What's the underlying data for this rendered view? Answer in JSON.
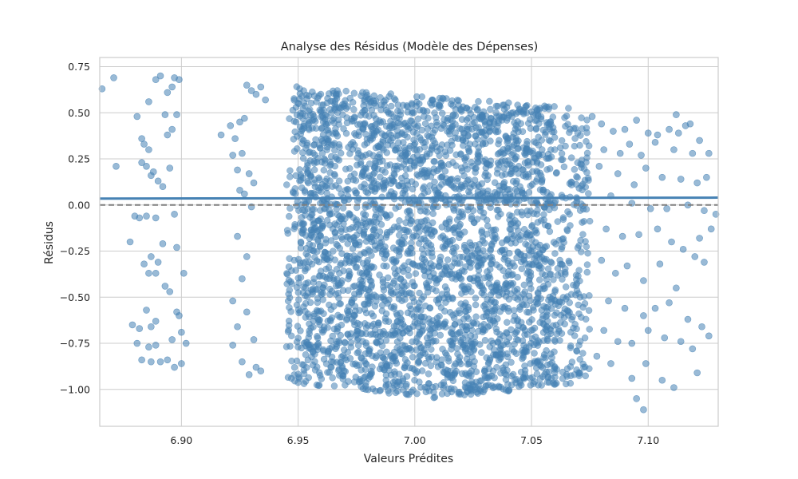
{
  "chart_data": {
    "type": "scatter",
    "title": "Analyse des Résidus (Modèle des Dépenses)",
    "xlabel": "Valeurs Prédites",
    "ylabel": "Résidus",
    "xlim": [
      6.865,
      7.13
    ],
    "ylim": [
      -1.2,
      0.8
    ],
    "x_ticks": [
      6.9,
      6.95,
      7.0,
      7.05,
      7.1
    ],
    "x_tick_labels": [
      "6.90",
      "6.95",
      "7.00",
      "7.05",
      "7.10"
    ],
    "y_ticks": [
      -1.0,
      -0.75,
      -0.5,
      -0.25,
      0.0,
      0.25,
      0.5,
      0.75
    ],
    "y_tick_labels": [
      "−1.00",
      "−0.75",
      "−0.50",
      "−0.25",
      "0.00",
      "0.25",
      "0.50",
      "0.75"
    ],
    "grid": true,
    "legend": "none",
    "marker_color": "#4682B4",
    "marker_alpha": 0.55,
    "series": [
      {
        "kind": "points-sample",
        "points": [
          [
            6.866,
            0.63
          ],
          [
            6.871,
            0.69
          ],
          [
            6.872,
            0.21
          ],
          [
            6.881,
            0.48
          ],
          [
            6.883,
            0.36
          ],
          [
            6.884,
            0.33
          ],
          [
            6.886,
            0.56
          ],
          [
            6.887,
            0.16
          ],
          [
            6.889,
            0.68
          ],
          [
            6.891,
            0.7
          ],
          [
            6.893,
            0.49
          ],
          [
            6.894,
            0.61
          ],
          [
            6.896,
            0.64
          ],
          [
            6.897,
            0.69
          ],
          [
            6.898,
            0.49
          ],
          [
            6.885,
            0.21
          ],
          [
            6.888,
            0.18
          ],
          [
            6.89,
            0.13
          ],
          [
            6.892,
            0.1
          ],
          [
            6.895,
            0.2
          ],
          [
            6.899,
            0.68
          ],
          [
            6.896,
            0.41
          ],
          [
            6.894,
            0.38
          ],
          [
            6.886,
            0.3
          ],
          [
            6.883,
            0.23
          ],
          [
            6.88,
            -0.06
          ],
          [
            6.882,
            -0.07
          ],
          [
            6.885,
            -0.06
          ],
          [
            6.889,
            -0.07
          ],
          [
            6.897,
            -0.05
          ],
          [
            6.878,
            -0.2
          ],
          [
            6.887,
            -0.28
          ],
          [
            6.89,
            -0.31
          ],
          [
            6.892,
            -0.21
          ],
          [
            6.884,
            -0.32
          ],
          [
            6.886,
            -0.37
          ],
          [
            6.889,
            -0.37
          ],
          [
            6.893,
            -0.44
          ],
          [
            6.895,
            -0.47
          ],
          [
            6.898,
            -0.23
          ],
          [
            6.901,
            -0.37
          ],
          [
            6.898,
            -0.58
          ],
          [
            6.899,
            -0.6
          ],
          [
            6.885,
            -0.57
          ],
          [
            6.889,
            -0.63
          ],
          [
            6.879,
            -0.65
          ],
          [
            6.882,
            -0.67
          ],
          [
            6.887,
            -0.66
          ],
          [
            6.881,
            -0.75
          ],
          [
            6.886,
            -0.77
          ],
          [
            6.889,
            -0.76
          ],
          [
            6.896,
            -0.73
          ],
          [
            6.9,
            -0.69
          ],
          [
            6.902,
            -0.75
          ],
          [
            6.883,
            -0.84
          ],
          [
            6.887,
            -0.85
          ],
          [
            6.891,
            -0.85
          ],
          [
            6.894,
            -0.84
          ],
          [
            6.897,
            -0.88
          ],
          [
            6.9,
            -0.86
          ],
          [
            6.917,
            0.38
          ],
          [
            6.921,
            0.43
          ],
          [
            6.925,
            0.45
          ],
          [
            6.927,
            0.47
          ],
          [
            6.923,
            0.36
          ],
          [
            6.926,
            0.28
          ],
          [
            6.922,
            0.27
          ],
          [
            6.928,
            0.65
          ],
          [
            6.93,
            0.62
          ],
          [
            6.932,
            0.6
          ],
          [
            6.934,
            0.64
          ],
          [
            6.936,
            0.57
          ],
          [
            6.924,
            0.19
          ],
          [
            6.929,
            0.17
          ],
          [
            6.931,
            0.12
          ],
          [
            6.927,
            0.06
          ],
          [
            6.925,
            0.08
          ],
          [
            6.93,
            -0.01
          ],
          [
            6.924,
            -0.17
          ],
          [
            6.928,
            -0.28
          ],
          [
            6.926,
            -0.4
          ],
          [
            6.922,
            -0.52
          ],
          [
            6.924,
            -0.66
          ],
          [
            6.922,
            -0.76
          ],
          [
            6.926,
            -0.85
          ],
          [
            6.929,
            -0.92
          ],
          [
            6.932,
            -0.88
          ],
          [
            6.934,
            -0.9
          ],
          [
            6.931,
            -0.73
          ],
          [
            6.928,
            -0.58
          ],
          [
            7.076,
            0.48
          ],
          [
            7.08,
            0.44
          ],
          [
            7.085,
            0.4
          ],
          [
            7.09,
            0.41
          ],
          [
            7.095,
            0.46
          ],
          [
            7.1,
            0.39
          ],
          [
            7.104,
            0.38
          ],
          [
            7.109,
            0.41
          ],
          [
            7.113,
            0.39
          ],
          [
            7.118,
            0.44
          ],
          [
            7.122,
            0.35
          ],
          [
            7.126,
            0.28
          ],
          [
            7.112,
            0.49
          ],
          [
            7.116,
            0.43
          ],
          [
            7.081,
            0.3
          ],
          [
            7.088,
            0.28
          ],
          [
            7.092,
            0.33
          ],
          [
            7.097,
            0.27
          ],
          [
            7.103,
            0.34
          ],
          [
            7.111,
            0.3
          ],
          [
            7.119,
            0.28
          ],
          [
            7.125,
            0.15
          ],
          [
            7.079,
            0.21
          ],
          [
            7.087,
            0.17
          ],
          [
            7.094,
            0.11
          ],
          [
            7.099,
            0.2
          ],
          [
            7.106,
            0.15
          ],
          [
            7.114,
            0.14
          ],
          [
            7.121,
            0.12
          ],
          [
            7.084,
            0.05
          ],
          [
            7.093,
            0.01
          ],
          [
            7.101,
            -0.02
          ],
          [
            7.108,
            -0.02
          ],
          [
            7.117,
            0.0
          ],
          [
            7.124,
            -0.03
          ],
          [
            7.129,
            -0.05
          ],
          [
            7.082,
            -0.13
          ],
          [
            7.089,
            -0.17
          ],
          [
            7.096,
            -0.16
          ],
          [
            7.104,
            -0.13
          ],
          [
            7.11,
            -0.2
          ],
          [
            7.115,
            -0.24
          ],
          [
            7.122,
            -0.18
          ],
          [
            7.127,
            -0.13
          ],
          [
            7.08,
            -0.3
          ],
          [
            7.086,
            -0.37
          ],
          [
            7.091,
            -0.33
          ],
          [
            7.098,
            -0.41
          ],
          [
            7.105,
            -0.32
          ],
          [
            7.112,
            -0.45
          ],
          [
            7.12,
            -0.28
          ],
          [
            7.124,
            -0.31
          ],
          [
            7.083,
            -0.52
          ],
          [
            7.09,
            -0.56
          ],
          [
            7.098,
            -0.6
          ],
          [
            7.103,
            -0.56
          ],
          [
            7.109,
            -0.53
          ],
          [
            7.117,
            -0.62
          ],
          [
            7.123,
            -0.66
          ],
          [
            7.081,
            -0.68
          ],
          [
            7.087,
            -0.74
          ],
          [
            7.093,
            -0.75
          ],
          [
            7.1,
            -0.68
          ],
          [
            7.107,
            -0.72
          ],
          [
            7.114,
            -0.74
          ],
          [
            7.119,
            -0.78
          ],
          [
            7.126,
            -0.71
          ],
          [
            7.084,
            -0.86
          ],
          [
            7.093,
            -0.94
          ],
          [
            7.099,
            -0.86
          ],
          [
            7.106,
            -0.95
          ],
          [
            7.111,
            -0.99
          ],
          [
            7.121,
            -0.91
          ],
          [
            7.095,
            -1.05
          ],
          [
            7.098,
            -1.11
          ],
          [
            7.078,
            -0.82
          ]
        ]
      },
      {
        "kind": "dense-cloud-sample",
        "x_range": [
          6.945,
          7.075
        ],
        "y_range": [
          -1.05,
          0.66
        ],
        "top_edge": [
          [
            6.945,
            0.65
          ],
          [
            7.065,
            0.53
          ]
        ],
        "approx_count": 4000
      },
      {
        "kind": "regression-line",
        "color": "#4682B4",
        "points": [
          [
            6.865,
            0.035
          ],
          [
            7.13,
            0.04
          ]
        ]
      },
      {
        "kind": "zero-reference",
        "color": "#7f7f7f",
        "dashed": true,
        "y": 0.0
      }
    ]
  }
}
